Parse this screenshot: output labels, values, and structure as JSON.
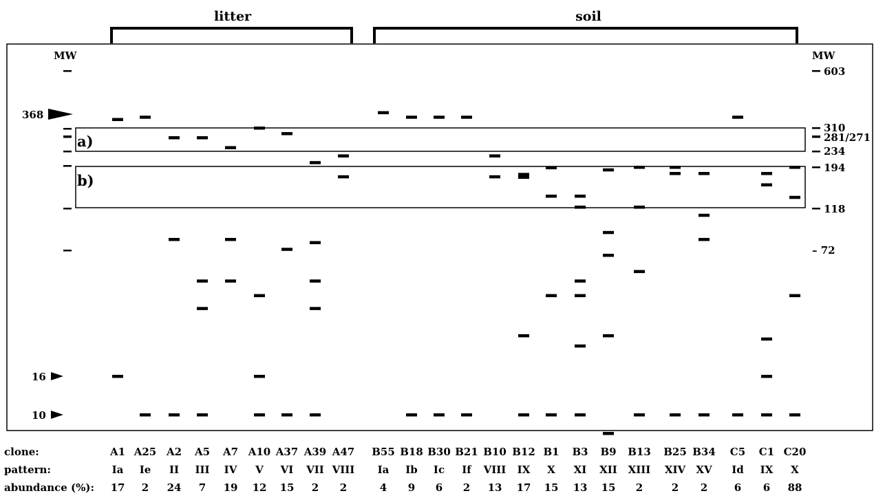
{
  "groups": {
    "litter": "litter",
    "soil": "soil"
  },
  "mw_label_left": "MW",
  "mw_label_right": "MW",
  "left_markers": [
    {
      "label": "368",
      "mw": 368
    },
    {
      "label": "16",
      "mw": 16
    },
    {
      "label": "10",
      "mw": 10
    }
  ],
  "right_ladder": [
    "603",
    "310",
    "281/271",
    "234",
    "194",
    "118",
    "– 72"
  ],
  "regions": {
    "a": "a)",
    "b": "b)"
  },
  "row_labels": {
    "clone": "clone:",
    "pattern": "pattern:",
    "abundance": "abundance (%):"
  },
  "lanes": [
    {
      "clone": "A1",
      "pattern": "Ia",
      "abundance": "17",
      "bands": [
        345,
        16
      ]
    },
    {
      "clone": "A25",
      "pattern": "Ie",
      "abundance": "2",
      "bands": [
        355,
        10
      ]
    },
    {
      "clone": "A2",
      "pattern": "II",
      "abundance": "24",
      "bands": [
        276,
        82,
        10
      ]
    },
    {
      "clone": "A5",
      "pattern": "III",
      "abundance": "7",
      "bands": [
        276,
        50,
        36,
        10
      ]
    },
    {
      "clone": "A7",
      "pattern": "IV",
      "abundance": "19",
      "bands": [
        245,
        82,
        50
      ]
    },
    {
      "clone": "A10",
      "pattern": "V",
      "abundance": "12",
      "bands": [
        310,
        42,
        16,
        10
      ]
    },
    {
      "clone": "A37",
      "pattern": "VI",
      "abundance": "15",
      "bands": [
        290,
        73,
        10
      ]
    },
    {
      "clone": "A39",
      "pattern": "VII",
      "abundance": "2",
      "bands": [
        205,
        79,
        50,
        36,
        10
      ]
    },
    {
      "clone": "A47",
      "pattern": "VIII",
      "abundance": "2",
      "bands": [
        222,
        173
      ]
    },
    {
      "clone": "B55",
      "pattern": "Ia",
      "abundance": "4",
      "bands": [
        375
      ]
    },
    {
      "clone": "B18",
      "pattern": "Ib",
      "abundance": "9",
      "bands": [
        355,
        10
      ]
    },
    {
      "clone": "B30",
      "pattern": "Ic",
      "abundance": "6",
      "bands": [
        355,
        10
      ]
    },
    {
      "clone": "B21",
      "pattern": "If",
      "abundance": "2",
      "bands": [
        355,
        10
      ]
    },
    {
      "clone": "B10",
      "pattern": "VIII",
      "abundance": "13",
      "bands": [
        222,
        173
      ]
    },
    {
      "clone": "B12",
      "pattern": "IX",
      "abundance": "17",
      "bands": [
        178,
        172,
        26,
        10
      ]
    },
    {
      "clone": "B1",
      "pattern": "X",
      "abundance": "15",
      "bands": [
        193,
        137,
        42,
        10
      ]
    },
    {
      "clone": "B3",
      "pattern": "XI",
      "abundance": "13",
      "bands": [
        137,
        120,
        50,
        42,
        23,
        10
      ]
    },
    {
      "clone": "B9",
      "pattern": "XII",
      "abundance": "15",
      "bands": [
        188,
        89,
        68,
        26,
        8
      ]
    },
    {
      "clone": "B13",
      "pattern": "XIII",
      "abundance": "2",
      "bands": [
        194,
        120,
        56,
        10
      ]
    },
    {
      "clone": "B25",
      "pattern": "XIV",
      "abundance": "2",
      "bands": [
        194,
        180,
        10
      ]
    },
    {
      "clone": "B34",
      "pattern": "XV",
      "abundance": "2",
      "bands": [
        180,
        109,
        82,
        10
      ]
    },
    {
      "clone": "C5",
      "pattern": "Id",
      "abundance": "6",
      "bands": [
        355,
        10
      ]
    },
    {
      "clone": "C1",
      "pattern": "IX",
      "abundance": "6",
      "bands": [
        180,
        157,
        25,
        16,
        10
      ]
    },
    {
      "clone": "C20",
      "pattern": "X",
      "abundance": "88",
      "bands": [
        194,
        135,
        42,
        10
      ]
    }
  ]
}
